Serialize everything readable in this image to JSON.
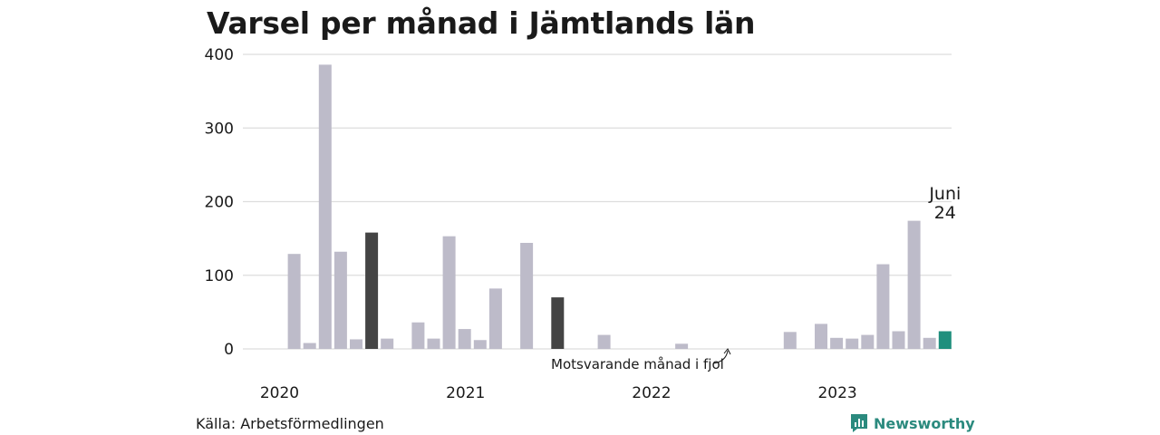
{
  "title": "Varsel per månad i Jämtlands län",
  "source": "Källa: Arbetsförmedlingen",
  "brand": "Newsworthy",
  "colors": {
    "default": "#bdbbc9",
    "same_month": "#444444",
    "current": "#1f8f7d",
    "grid": "#dddddd",
    "brand": "#2b8a7e"
  },
  "chart_data": {
    "type": "bar",
    "ylim": [
      0,
      400
    ],
    "yticks": [
      0,
      100,
      200,
      300,
      400
    ],
    "ytick_labels": [
      "0",
      "100",
      "200",
      "300",
      "400"
    ],
    "year_labels": [
      {
        "label": "2020",
        "index": 0
      },
      {
        "label": "2021",
        "index": 12
      },
      {
        "label": "2022",
        "index": 24
      },
      {
        "label": "2023",
        "index": 36
      }
    ],
    "values": [
      0,
      129,
      8,
      386,
      132,
      13,
      158,
      14,
      0,
      36,
      14,
      153,
      27,
      12,
      82,
      0,
      144,
      0,
      70,
      0,
      0,
      19,
      0,
      0,
      0,
      0,
      7,
      0,
      0,
      0,
      0,
      0,
      0,
      23,
      0,
      34,
      15,
      14,
      19,
      115,
      24,
      174,
      15,
      24
    ],
    "highlight": {
      "same_month": [
        6,
        18
      ],
      "current": 43
    },
    "annotation_current": [
      "Juni",
      "24"
    ],
    "annotation_same_month": "Motsvarande månad i fjol"
  }
}
